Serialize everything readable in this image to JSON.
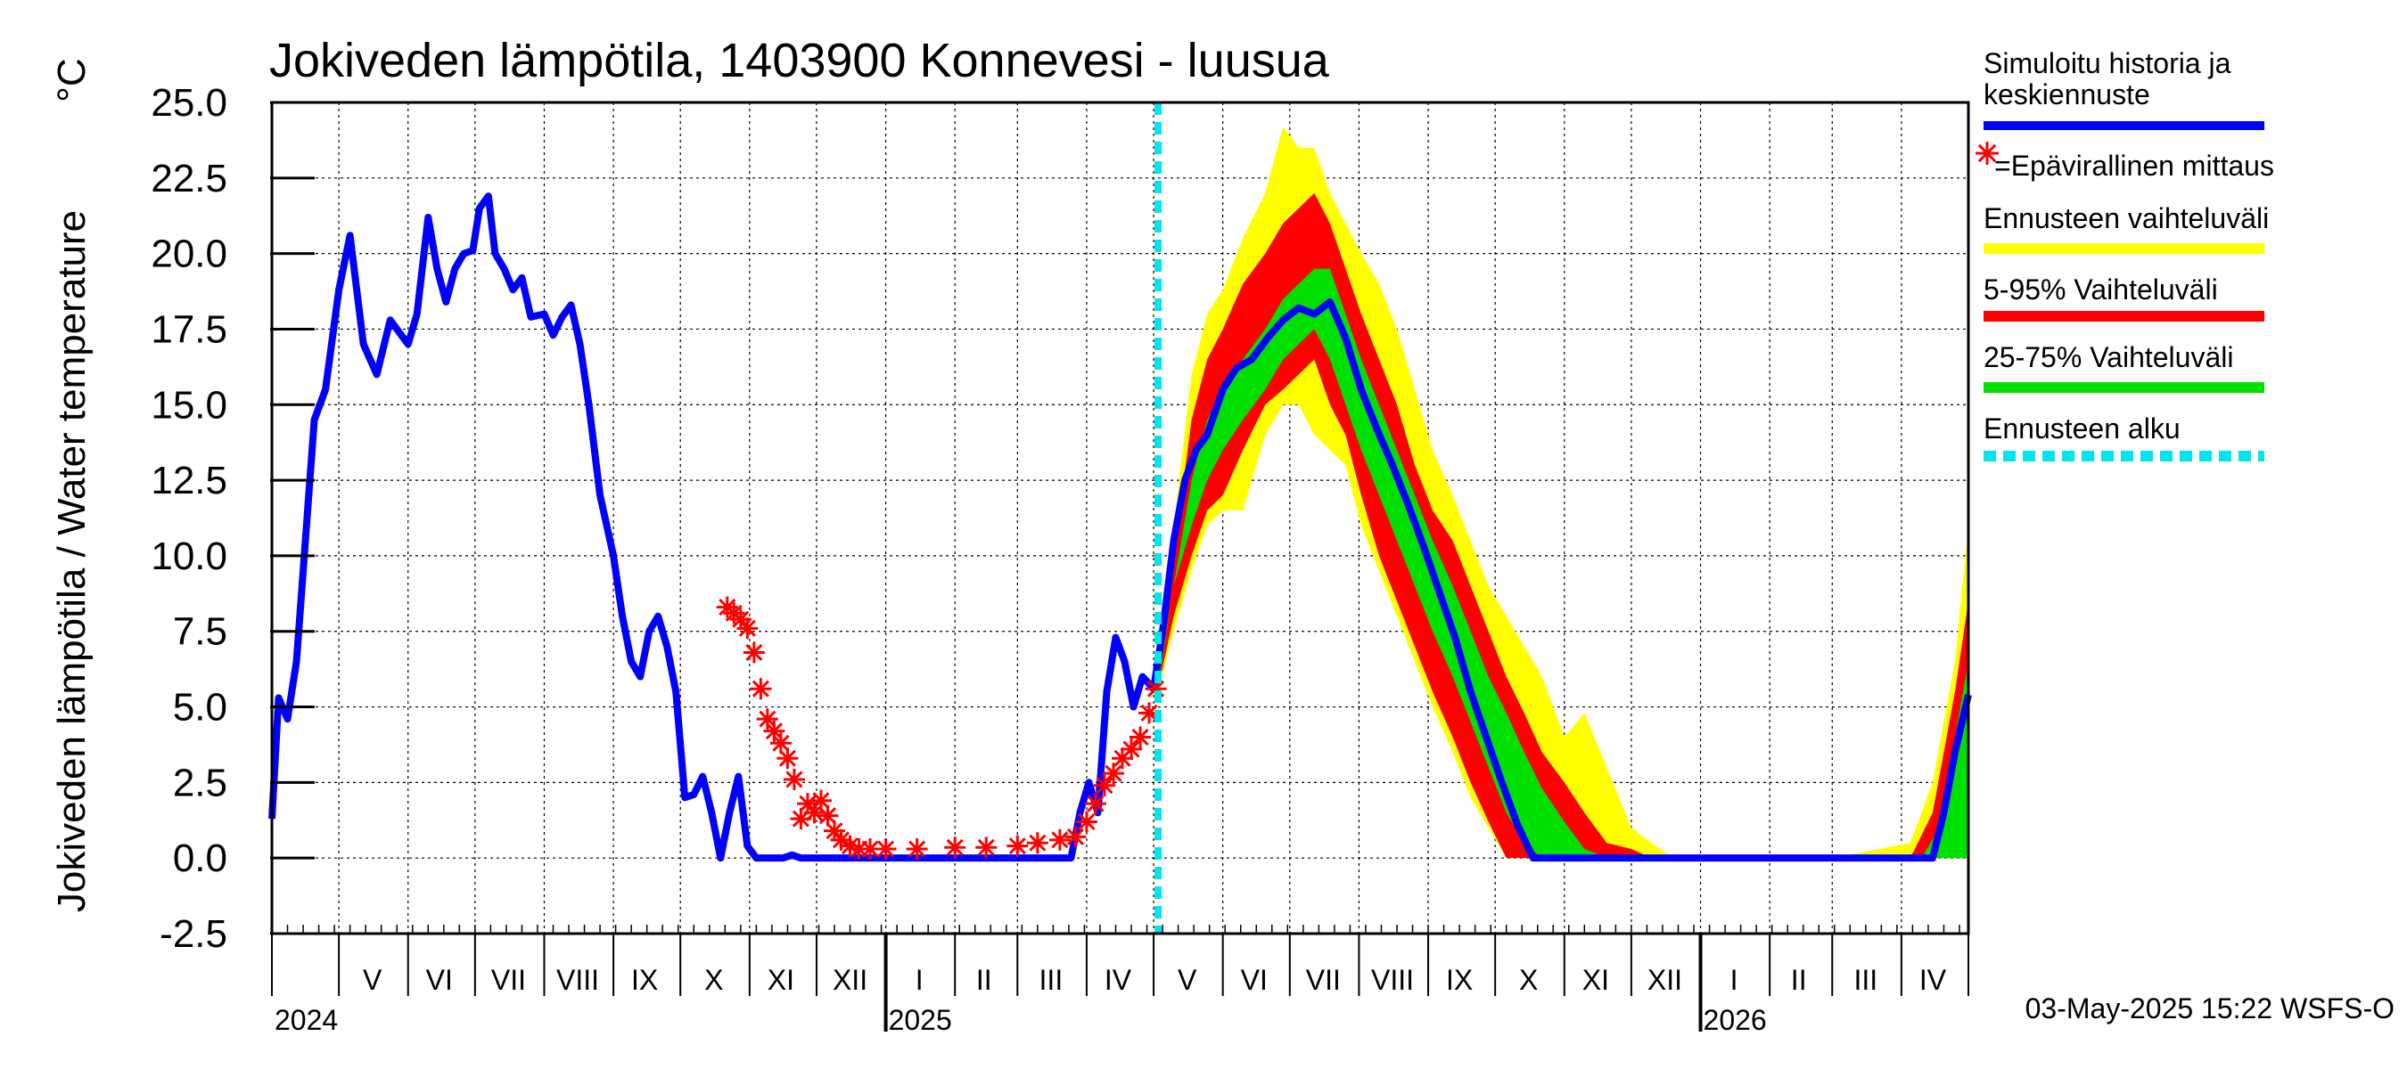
{
  "chart_data": {
    "type": "area",
    "title": "Jokiveden lämpötila, 1403900 Konnevesi - luusua",
    "ylabel": "Jokiveden lämpötila / Water temperature",
    "yunit": "°C",
    "ylim": [
      -2.5,
      25.0
    ],
    "yticks": [
      "25.0",
      "22.5",
      "20.0",
      "17.5",
      "15.0",
      "12.5",
      "10.0",
      "7.5",
      "5.0",
      "2.5",
      "0.0",
      "-2.5"
    ],
    "ytick_values": [
      25.0,
      22.5,
      20.0,
      17.5,
      15.0,
      12.5,
      10.0,
      7.5,
      5.0,
      2.5,
      0.0,
      -2.5
    ],
    "xlim": [
      "2024-04-01",
      "2026-05-01"
    ],
    "month_labels": [
      {
        "label": "V",
        "date": "2024-05-16"
      },
      {
        "label": "VI",
        "date": "2024-06-15"
      },
      {
        "label": "VII",
        "date": "2024-07-16"
      },
      {
        "label": "VIII",
        "date": "2024-08-16"
      },
      {
        "label": "IX",
        "date": "2024-09-15"
      },
      {
        "label": "X",
        "date": "2024-10-16"
      },
      {
        "label": "XI",
        "date": "2024-11-15"
      },
      {
        "label": "XII",
        "date": "2024-12-16"
      },
      {
        "label": "I",
        "date": "2025-01-16"
      },
      {
        "label": "II",
        "date": "2025-02-14"
      },
      {
        "label": "III",
        "date": "2025-03-16"
      },
      {
        "label": "IV",
        "date": "2025-04-15"
      },
      {
        "label": "V",
        "date": "2025-05-16"
      },
      {
        "label": "VI",
        "date": "2025-06-15"
      },
      {
        "label": "VII",
        "date": "2025-07-16"
      },
      {
        "label": "VIII",
        "date": "2025-08-16"
      },
      {
        "label": "IX",
        "date": "2025-09-15"
      },
      {
        "label": "X",
        "date": "2025-10-16"
      },
      {
        "label": "XI",
        "date": "2025-11-15"
      },
      {
        "label": "XII",
        "date": "2025-12-16"
      },
      {
        "label": "I",
        "date": "2026-01-16"
      },
      {
        "label": "II",
        "date": "2026-02-14"
      },
      {
        "label": "III",
        "date": "2026-03-16"
      },
      {
        "label": "IV",
        "date": "2026-04-15"
      }
    ],
    "year_labels": [
      {
        "label": "2024",
        "date": "2024-04-01"
      },
      {
        "label": "2025",
        "date": "2025-01-01"
      },
      {
        "label": "2026",
        "date": "2026-01-01"
      }
    ],
    "forecast_start": "2025-05-03",
    "legend": {
      "placement": "right",
      "entries": [
        {
          "label": "Simuloitu historia ja keskiennuste",
          "line1": "Simuloitu historia ja",
          "line2": "keskiennuste",
          "color": "#0000ff",
          "style": "solid"
        },
        {
          "label": "=Epävirallinen mittaus",
          "marker": "*",
          "color": "#ff0000",
          "style": "marker"
        },
        {
          "label": "Ennusteen vaihteluväli",
          "color": "#ffff00",
          "style": "solid"
        },
        {
          "label": "5-95% Vaihteluväli",
          "color": "#ff0000",
          "style": "solid"
        },
        {
          "label": "25-75% Vaihteluväli",
          "color": "#00e000",
          "style": "solid"
        },
        {
          "label": "Ennusteen alku",
          "color": "#00e5ee",
          "style": "dashed"
        }
      ]
    },
    "series": [
      {
        "name": "Simuloitu historia ja keskiennuste",
        "color": "#0000ff",
        "x": [
          "2024-04-01",
          "2024-04-04",
          "2024-04-08",
          "2024-04-12",
          "2024-04-16",
          "2024-04-20",
          "2024-04-25",
          "2024-05-01",
          "2024-05-06",
          "2024-05-12",
          "2024-05-18",
          "2024-05-24",
          "2024-06-01",
          "2024-06-05",
          "2024-06-10",
          "2024-06-14",
          "2024-06-18",
          "2024-06-22",
          "2024-06-26",
          "2024-06-30",
          "2024-07-03",
          "2024-07-07",
          "2024-07-10",
          "2024-07-14",
          "2024-07-18",
          "2024-07-22",
          "2024-07-26",
          "2024-08-01",
          "2024-08-05",
          "2024-08-09",
          "2024-08-13",
          "2024-08-17",
          "2024-08-21",
          "2024-08-26",
          "2024-09-01",
          "2024-09-05",
          "2024-09-09",
          "2024-09-13",
          "2024-09-17",
          "2024-09-21",
          "2024-09-25",
          "2024-09-29",
          "2024-10-03",
          "2024-10-07",
          "2024-10-11",
          "2024-10-15",
          "2024-10-19",
          "2024-10-23",
          "2024-10-27",
          "2024-10-31",
          "2024-11-04",
          "2024-11-08",
          "2024-11-12",
          "2024-11-16",
          "2024-11-20",
          "2024-11-24",
          "2024-11-28",
          "2024-12-02",
          "2024-12-06",
          "2024-12-12",
          "2024-12-20",
          "2025-01-01",
          "2025-02-01",
          "2025-03-01",
          "2025-03-25",
          "2025-03-29",
          "2025-04-02",
          "2025-04-06",
          "2025-04-10",
          "2025-04-14",
          "2025-04-18",
          "2025-04-22",
          "2025-04-26",
          "2025-05-01",
          "2025-05-05",
          "2025-05-10",
          "2025-05-15",
          "2025-05-20",
          "2025-05-25",
          "2025-06-01",
          "2025-06-07",
          "2025-06-14",
          "2025-06-21",
          "2025-06-28",
          "2025-07-05",
          "2025-07-12",
          "2025-07-19",
          "2025-07-26",
          "2025-08-02",
          "2025-08-09",
          "2025-08-16",
          "2025-08-23",
          "2025-08-30",
          "2025-09-06",
          "2025-09-13",
          "2025-09-20",
          "2025-09-27",
          "2025-10-04",
          "2025-10-11",
          "2025-10-18",
          "2025-10-25",
          "2025-11-01",
          "2025-11-08",
          "2025-11-15",
          "2025-11-22",
          "2026-01-01",
          "2026-02-01",
          "2026-03-01",
          "2026-04-01",
          "2026-04-10",
          "2026-04-15",
          "2026-04-20",
          "2026-04-25",
          "2026-05-01"
        ],
        "y": [
          1.3,
          5.3,
          4.6,
          6.5,
          10.5,
          14.5,
          15.5,
          18.8,
          20.6,
          17.0,
          16.0,
          17.8,
          17.0,
          18.0,
          21.2,
          19.5,
          18.4,
          19.5,
          20.0,
          20.1,
          21.5,
          21.9,
          20.0,
          19.5,
          18.8,
          19.2,
          17.9,
          18.0,
          17.3,
          17.9,
          18.3,
          17.0,
          15.0,
          12.0,
          10.0,
          8.0,
          6.5,
          6.0,
          7.5,
          8.0,
          7.0,
          5.5,
          2.0,
          2.1,
          2.7,
          1.5,
          0.0,
          1.5,
          2.7,
          0.4,
          0.0,
          0.0,
          0.0,
          0.0,
          0.1,
          0.0,
          0.0,
          0.0,
          0.0,
          0.0,
          0.0,
          0.0,
          0.0,
          0.0,
          0.0,
          1.5,
          2.5,
          1.5,
          5.5,
          7.3,
          6.5,
          5.0,
          6.0,
          5.6,
          7.5,
          10.5,
          12.5,
          13.5,
          14.0,
          15.5,
          16.2,
          16.5,
          17.2,
          17.8,
          18.2,
          18.0,
          18.4,
          17.2,
          15.5,
          14.2,
          13.0,
          11.7,
          10.3,
          8.8,
          7.3,
          5.5,
          4.0,
          2.5,
          1.1,
          0.0,
          0.0,
          0.0,
          0.0,
          0.0,
          0.0,
          0.0,
          0.0,
          0.0,
          0.0,
          0.0,
          0.0,
          1.5,
          3.5,
          5.4
        ]
      },
      {
        "name": "=Epävirallinen mittaus",
        "color": "#ff0000",
        "x": [
          "2024-10-22",
          "2024-10-25",
          "2024-10-28",
          "2024-10-31",
          "2024-11-03",
          "2024-11-06",
          "2024-11-09",
          "2024-11-12",
          "2024-11-15",
          "2024-11-18",
          "2024-11-21",
          "2024-11-24",
          "2024-11-27",
          "2024-11-30",
          "2024-12-03",
          "2024-12-06",
          "2024-12-09",
          "2024-12-12",
          "2024-12-16",
          "2024-12-20",
          "2024-12-25",
          "2025-01-01",
          "2025-01-15",
          "2025-02-01",
          "2025-02-15",
          "2025-03-01",
          "2025-03-10",
          "2025-03-20",
          "2025-03-27",
          "2025-04-01",
          "2025-04-05",
          "2025-04-09",
          "2025-04-13",
          "2025-04-17",
          "2025-04-21",
          "2025-04-25",
          "2025-04-29",
          "2025-05-02"
        ],
        "y": [
          8.3,
          8.1,
          7.9,
          7.6,
          6.8,
          5.6,
          4.6,
          4.2,
          3.8,
          3.3,
          2.6,
          1.3,
          1.8,
          1.5,
          1.9,
          1.4,
          0.9,
          0.6,
          0.4,
          0.3,
          0.3,
          0.3,
          0.3,
          0.35,
          0.35,
          0.4,
          0.5,
          0.6,
          0.7,
          1.2,
          1.8,
          2.4,
          2.8,
          3.3,
          3.6,
          4.0,
          4.8,
          5.6
        ]
      },
      {
        "name": "Ennusteen vaihteluväli",
        "color": "#ffff00",
        "x": [
          "2025-05-03",
          "2025-05-10",
          "2025-05-18",
          "2025-05-25",
          "2025-06-01",
          "2025-06-10",
          "2025-06-20",
          "2025-06-28",
          "2025-07-05",
          "2025-07-12",
          "2025-07-19",
          "2025-07-26",
          "2025-08-02",
          "2025-08-10",
          "2025-08-18",
          "2025-08-26",
          "2025-09-03",
          "2025-09-12",
          "2025-09-20",
          "2025-09-28",
          "2025-10-06",
          "2025-10-14",
          "2025-10-22",
          "2025-11-01",
          "2025-11-10",
          "2025-11-20",
          "2025-12-01",
          "2025-12-10",
          "2025-12-20",
          "2026-01-01",
          "2026-03-01",
          "2026-04-05",
          "2026-04-15",
          "2026-04-25",
          "2026-05-01"
        ],
        "upper": [
          6.2,
          11.0,
          16.0,
          18.0,
          18.8,
          20.5,
          22.0,
          24.2,
          23.5,
          23.5,
          22.0,
          21.0,
          20.0,
          19.0,
          17.5,
          15.5,
          13.5,
          12.0,
          10.5,
          9.0,
          8.0,
          7.0,
          6.0,
          4.0,
          4.8,
          3.0,
          1.0,
          0.5,
          0.0,
          0.0,
          0.0,
          0.5,
          2.5,
          6.5,
          11.0
        ],
        "lower": [
          5.5,
          7.5,
          9.5,
          11.0,
          11.5,
          11.5,
          14.0,
          15.0,
          15.0,
          14.0,
          13.5,
          13.0,
          11.0,
          9.5,
          8.0,
          6.5,
          5.0,
          3.5,
          2.0,
          1.0,
          0.0,
          0.0,
          0.0,
          0.0,
          0.0,
          0.0,
          0.0,
          0.0,
          0.0,
          0.0,
          0.0,
          0.0,
          0.0,
          0.0,
          0.0
        ]
      },
      {
        "name": "5-95% Vaihteluväli",
        "color": "#ff0000",
        "x": [
          "2025-05-03",
          "2025-05-10",
          "2025-05-18",
          "2025-05-25",
          "2025-06-01",
          "2025-06-10",
          "2025-06-20",
          "2025-06-28",
          "2025-07-05",
          "2025-07-12",
          "2025-07-19",
          "2025-07-26",
          "2025-08-02",
          "2025-08-10",
          "2025-08-18",
          "2025-08-26",
          "2025-09-03",
          "2025-09-12",
          "2025-09-20",
          "2025-09-28",
          "2025-10-06",
          "2025-10-14",
          "2025-10-22",
          "2025-11-01",
          "2025-11-10",
          "2025-11-20",
          "2025-12-01",
          "2025-12-10",
          "2025-12-20",
          "2026-01-01",
          "2026-04-05",
          "2026-04-15",
          "2026-04-25",
          "2026-05-01"
        ],
        "upper": [
          6.0,
          10.0,
          14.5,
          16.5,
          17.5,
          19.0,
          20.0,
          21.0,
          21.5,
          22.0,
          21.0,
          19.5,
          18.0,
          16.5,
          15.0,
          13.0,
          11.5,
          10.5,
          9.0,
          7.5,
          6.0,
          4.8,
          3.5,
          2.5,
          1.5,
          0.5,
          0.3,
          0.0,
          0.0,
          0.0,
          0.0,
          1.5,
          5.5,
          8.5
        ],
        "lower": [
          5.6,
          8.0,
          10.0,
          11.5,
          12.0,
          13.5,
          15.0,
          15.5,
          16.0,
          16.5,
          15.0,
          14.0,
          12.0,
          10.0,
          8.5,
          7.0,
          5.5,
          4.0,
          2.5,
          1.2,
          0.0,
          0.0,
          0.0,
          0.0,
          0.0,
          0.0,
          0.0,
          0.0,
          0.0,
          0.0,
          0.0,
          0.0,
          0.0,
          0.0
        ]
      },
      {
        "name": "25-75% Vaihteluväli",
        "color": "#00e000",
        "x": [
          "2025-05-03",
          "2025-05-10",
          "2025-05-18",
          "2025-05-25",
          "2025-06-01",
          "2025-06-10",
          "2025-06-20",
          "2025-06-28",
          "2025-07-05",
          "2025-07-12",
          "2025-07-19",
          "2025-07-26",
          "2025-08-02",
          "2025-08-10",
          "2025-08-18",
          "2025-08-26",
          "2025-09-03",
          "2025-09-12",
          "2025-09-20",
          "2025-09-28",
          "2025-10-06",
          "2025-10-14",
          "2025-10-22",
          "2025-11-01",
          "2025-11-10",
          "2025-11-20",
          "2026-04-10",
          "2026-04-18",
          "2026-04-25",
          "2026-05-01"
        ],
        "upper": [
          5.8,
          9.0,
          12.5,
          14.5,
          15.5,
          16.5,
          17.5,
          18.5,
          19.0,
          19.5,
          19.5,
          18.0,
          16.5,
          15.0,
          13.5,
          12.0,
          10.5,
          9.0,
          7.5,
          6.0,
          4.8,
          3.5,
          2.3,
          1.2,
          0.3,
          0.0,
          0.0,
          1.0,
          4.0,
          6.5
        ],
        "lower": [
          5.6,
          9.0,
          11.0,
          12.5,
          13.5,
          14.5,
          15.5,
          16.5,
          17.0,
          17.5,
          16.5,
          15.0,
          13.5,
          12.0,
          10.5,
          9.0,
          7.5,
          6.0,
          4.5,
          3.0,
          1.5,
          0.5,
          0.0,
          0.0,
          0.0,
          0.0,
          0.0,
          0.0,
          0.0,
          0.0
        ]
      }
    ],
    "grid": true,
    "footer": "03-May-2025 15:22 WSFS-O"
  }
}
